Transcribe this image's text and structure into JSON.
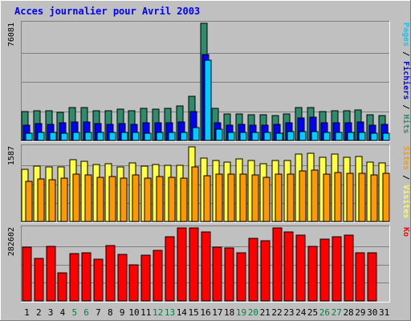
{
  "chart_data": {
    "type": "bar",
    "title": "Acces journalier pour Avril 2003",
    "colors": {
      "background": "#c0c0c0",
      "title": "#0000ff",
      "hits": "#2e8b6e",
      "fichiers": "#0000ff",
      "pages": "#00ccff",
      "visites": "#ffff44",
      "sites": "#ff9900",
      "ko": "#ff0000",
      "weekend_label": "#008040",
      "weekday_label": "#000000"
    },
    "categories": [
      "1",
      "2",
      "3",
      "4",
      "5",
      "6",
      "7",
      "8",
      "9",
      "10",
      "11",
      "12",
      "13",
      "14",
      "15",
      "16",
      "17",
      "18",
      "19",
      "20",
      "21",
      "22",
      "23",
      "24",
      "25",
      "26",
      "27",
      "28",
      "29",
      "30",
      "31"
    ],
    "weekend_days": [
      "5",
      "6",
      "12",
      "13",
      "19",
      "20",
      "26",
      "27"
    ],
    "panels": [
      {
        "name": "hits-fichiers-pages",
        "max_label": "76081",
        "ymax": 76081,
        "right_label_parts": [
          {
            "text": "Pages",
            "color": "#00ccff"
          },
          {
            "text": " / ",
            "color": "#000000"
          },
          {
            "text": "Fichiers",
            "color": "#0000ff"
          },
          {
            "text": " / ",
            "color": "#000000"
          },
          {
            "text": "Hits",
            "color": "#2e8b6e"
          }
        ],
        "series": [
          {
            "name": "Hits",
            "color": "#2e8b6e",
            "values": [
              18500,
              19300,
              19300,
              18200,
              21400,
              21300,
              19500,
              19300,
              20500,
              19300,
              20600,
              20300,
              21100,
              22400,
              28600,
              76081,
              20600,
              17200,
              17200,
              16900,
              16600,
              16100,
              17400,
              21400,
              21400,
              18700,
              19200,
              19200,
              19800,
              16900,
              16100
            ]
          },
          {
            "name": "Fichiers",
            "color": "#0000ff",
            "values": [
              10000,
              10800,
              10500,
              11300,
              12200,
              12200,
              10800,
              10500,
              10800,
              10500,
              11600,
              11600,
              11600,
              11900,
              18800,
              56000,
              11600,
              10000,
              10200,
              9800,
              10100,
              10500,
              11300,
              14500,
              15000,
              11600,
              11600,
              11600,
              11900,
              9800,
              10500
            ]
          },
          {
            "name": "Pages",
            "color": "#00ccff",
            "values": [
              4800,
              5300,
              5300,
              4500,
              5400,
              5400,
              5200,
              5100,
              5000,
              5100,
              4900,
              5100,
              5300,
              5400,
              8400,
              52000,
              7400,
              5100,
              5100,
              5000,
              5100,
              4900,
              5600,
              5600,
              5800,
              5000,
              5000,
              5000,
              5200,
              4800,
              4700
            ]
          }
        ]
      },
      {
        "name": "visites-sites",
        "max_label": "1587",
        "ymax": 1587,
        "right_label_parts": [
          {
            "text": "Sites",
            "color": "#ff9900"
          },
          {
            "text": " / ",
            "color": "#000000"
          },
          {
            "text": "Visites",
            "color": "#ffff44"
          }
        ],
        "series": [
          {
            "name": "Visites",
            "color": "#ffff44",
            "values": [
              1110,
              1170,
              1155,
              1165,
              1310,
              1280,
              1210,
              1225,
              1165,
              1240,
              1175,
              1220,
              1190,
              1200,
              1580,
              1340,
              1300,
              1270,
              1335,
              1295,
              1235,
              1300,
              1300,
              1440,
              1450,
              1365,
              1425,
              1360,
              1390,
              1265,
              1250
            ]
          },
          {
            "name": "Sites",
            "color": "#ff9900",
            "values": [
              850,
              905,
              890,
              915,
              1005,
              995,
              945,
              950,
              915,
              985,
              915,
              950,
              935,
              925,
              1165,
              970,
              1000,
              1000,
              1000,
              995,
              945,
              1005,
              1005,
              1075,
              1085,
              1010,
              1035,
              1030,
              1025,
              985,
              1020
            ]
          }
        ]
      },
      {
        "name": "ko",
        "max_label": "282602",
        "ymax": 282602,
        "right_label_parts": [
          {
            "text": "Ko",
            "color": "#ff0000"
          }
        ],
        "series": [
          {
            "name": "Ko",
            "color": "#ff0000",
            "values": [
              209000,
              165000,
              211000,
              109000,
              184000,
              187000,
              163000,
              213000,
              181000,
              139000,
              177000,
              196000,
              247000,
              282602,
              282602,
              267000,
              207000,
              204000,
              187000,
              242000,
              232000,
              282602,
              268000,
              254000,
              211000,
              240000,
              249000,
              255000,
              186000,
              187000,
              0
            ]
          }
        ]
      }
    ]
  }
}
